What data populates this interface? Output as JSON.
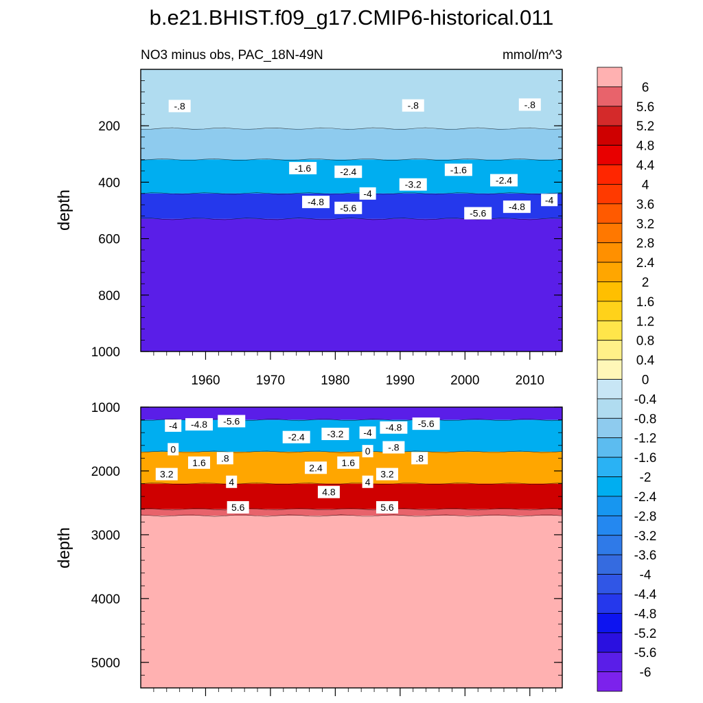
{
  "chart_data": {
    "type": "heatmap",
    "title": "b.e21.BHIST.f09_g17.CMIP6-historical.011",
    "subtitle_left": "NO3 minus obs, PAC_18N-49N",
    "subtitle_right": "mmol/m^3",
    "ylabel": "depth",
    "x_ticks": [
      "1960",
      "1970",
      "1980",
      "1990",
      "2000",
      "2010"
    ],
    "x_tick_values": [
      1960,
      1970,
      1980,
      1990,
      2000,
      2010
    ],
    "xlim": [
      1950,
      2015
    ],
    "colorbar": {
      "levels": [
        "6",
        "5.6",
        "5.2",
        "4.8",
        "4.4",
        "4",
        "3.6",
        "3.2",
        "2.8",
        "2.4",
        "2",
        "1.6",
        "1.2",
        "0.8",
        "0.4",
        "0",
        "-0.4",
        "-0.8",
        "-1.2",
        "-1.6",
        "-2",
        "-2.4",
        "-2.8",
        "-3.2",
        "-3.6",
        "-4",
        "-4.4",
        "-4.8",
        "-5.2",
        "-5.6",
        "-6"
      ],
      "colors": [
        "#ffb1b1",
        "#e8636b",
        "#d42a2a",
        "#cf0000",
        "#e80000",
        "#ff2600",
        "#ff3a00",
        "#ff5a00",
        "#ff7800",
        "#ff9000",
        "#ffa600",
        "#ffbf00",
        "#ffd21a",
        "#ffe54a",
        "#fff088",
        "#fff7b8",
        "#c8e6f5",
        "#b0dcf0",
        "#8ecbee",
        "#5cbcf0",
        "#2ab2f4",
        "#00aef0",
        "#1796f0",
        "#2488f0",
        "#2f7ae8",
        "#356be0",
        "#3056e6",
        "#2538ec",
        "#0d14f0",
        "#2a10e0",
        "#5a1ee8",
        "#7c22ec"
      ]
    },
    "panels": [
      {
        "name": "upper",
        "ylim": [
          1000,
          0
        ],
        "y_ticks": [
          "200",
          "400",
          "600",
          "800",
          "1000"
        ],
        "y_tick_values": [
          200,
          400,
          600,
          800,
          1000
        ],
        "fields": [
          {
            "depth_top": 0,
            "depth_bottom": 210,
            "value": -0.8
          },
          {
            "depth_top": 210,
            "depth_bottom": 320,
            "value": -1.2
          },
          {
            "depth_top": 320,
            "depth_bottom": 440,
            "value": -2.4
          },
          {
            "depth_top": 440,
            "depth_bottom": 530,
            "value": -4.8
          },
          {
            "depth_top": 530,
            "depth_bottom": 1000,
            "value": -6.0
          }
        ],
        "contour_labels": [
          {
            "text": "-.8",
            "x": 1956,
            "depth": 130
          },
          {
            "text": "-.8",
            "x": 1992,
            "depth": 128
          },
          {
            "text": "-.8",
            "x": 2010,
            "depth": 125
          },
          {
            "text": "-1.6",
            "x": 1975,
            "depth": 350
          },
          {
            "text": "-2.4",
            "x": 1982,
            "depth": 363
          },
          {
            "text": "-1.6",
            "x": 1999,
            "depth": 356
          },
          {
            "text": "-3.2",
            "x": 1992,
            "depth": 408
          },
          {
            "text": "-2.4",
            "x": 2006,
            "depth": 393
          },
          {
            "text": "-4",
            "x": 1985,
            "depth": 440
          },
          {
            "text": "-4",
            "x": 2013,
            "depth": 463
          },
          {
            "text": "-4.8",
            "x": 1977,
            "depth": 470
          },
          {
            "text": "-5.6",
            "x": 1982,
            "depth": 491
          },
          {
            "text": "-5.6",
            "x": 2002,
            "depth": 510
          },
          {
            "text": "-4.8",
            "x": 2008,
            "depth": 487
          }
        ]
      },
      {
        "name": "lower",
        "ylim": [
          5400,
          1000
        ],
        "y_ticks": [
          "1000",
          "2000",
          "3000",
          "4000",
          "5000"
        ],
        "y_tick_values": [
          1000,
          2000,
          3000,
          4000,
          5000
        ],
        "fields": [
          {
            "depth_top": 1000,
            "depth_bottom": 1200,
            "value": -6.0
          },
          {
            "depth_top": 1200,
            "depth_bottom": 1700,
            "value": -2.4
          },
          {
            "depth_top": 1700,
            "depth_bottom": 2200,
            "value": 2.0
          },
          {
            "depth_top": 2200,
            "depth_bottom": 2600,
            "value": 4.8
          },
          {
            "depth_top": 2600,
            "depth_bottom": 2700,
            "value": 5.6
          },
          {
            "depth_top": 2700,
            "depth_bottom": 5400,
            "value": 6.0
          }
        ],
        "contour_labels": [
          {
            "text": "-4",
            "x": 1955,
            "depth": 1290
          },
          {
            "text": "-4.8",
            "x": 1959,
            "depth": 1270
          },
          {
            "text": "-5.6",
            "x": 1964,
            "depth": 1220
          },
          {
            "text": "-2.4",
            "x": 1974,
            "depth": 1470
          },
          {
            "text": "-3.2",
            "x": 1980,
            "depth": 1420
          },
          {
            "text": "-4",
            "x": 1985,
            "depth": 1400
          },
          {
            "text": "-4.8",
            "x": 1989,
            "depth": 1320
          },
          {
            "text": "-5.6",
            "x": 1994,
            "depth": 1260
          },
          {
            "text": "0",
            "x": 1955,
            "depth": 1660
          },
          {
            "text": "-.8",
            "x": 1989,
            "depth": 1630
          },
          {
            "text": "0",
            "x": 1985,
            "depth": 1690
          },
          {
            "text": "1.6",
            "x": 1959,
            "depth": 1870
          },
          {
            "text": ".8",
            "x": 1963,
            "depth": 1800
          },
          {
            "text": "1.6",
            "x": 1982,
            "depth": 1870
          },
          {
            "text": ".8",
            "x": 1993,
            "depth": 1800
          },
          {
            "text": "3.2",
            "x": 1954,
            "depth": 2050
          },
          {
            "text": "2.4",
            "x": 1977,
            "depth": 1950
          },
          {
            "text": "3.2",
            "x": 1988,
            "depth": 2050
          },
          {
            "text": "4",
            "x": 1964,
            "depth": 2170
          },
          {
            "text": "4",
            "x": 1985,
            "depth": 2170
          },
          {
            "text": "4.8",
            "x": 1979,
            "depth": 2330
          },
          {
            "text": "5.6",
            "x": 1965,
            "depth": 2570
          },
          {
            "text": "5.6",
            "x": 1988,
            "depth": 2570
          }
        ]
      }
    ]
  }
}
